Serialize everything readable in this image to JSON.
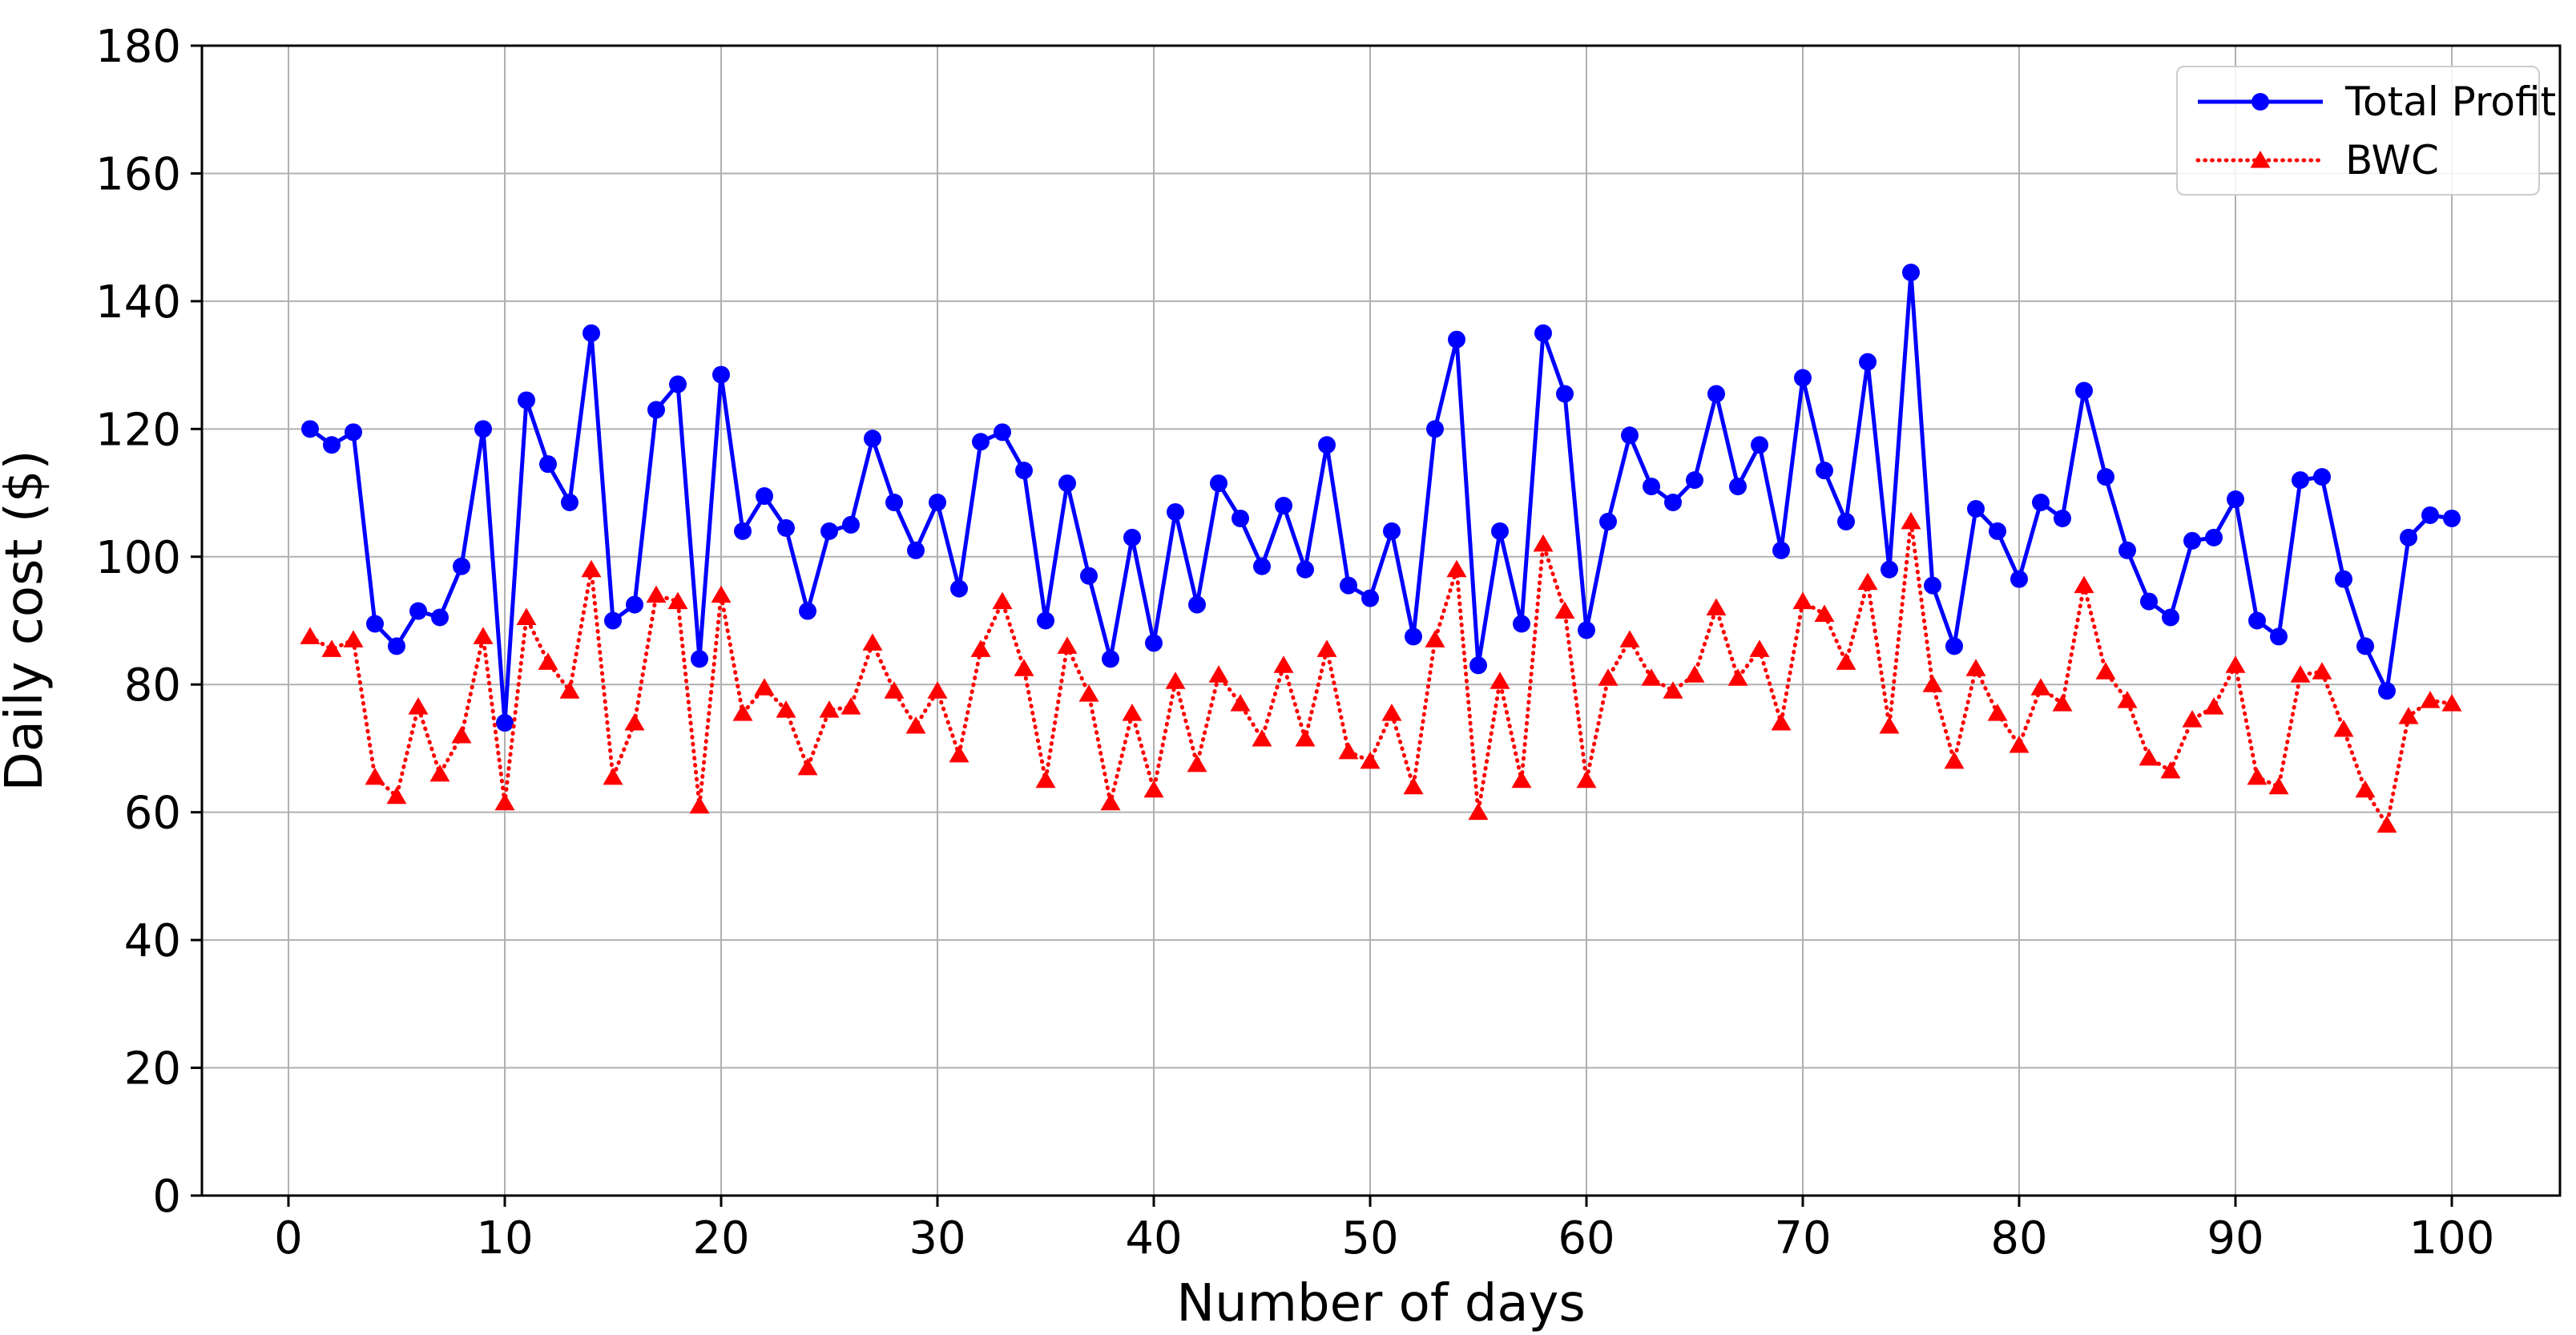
{
  "chart_data": {
    "type": "line",
    "title": "",
    "xlabel": "Number of days",
    "ylabel": "Daily cost ($)",
    "xlim": [
      -4,
      105
    ],
    "ylim": [
      0,
      180
    ],
    "xticks": [
      0,
      10,
      20,
      30,
      40,
      50,
      60,
      70,
      80,
      90,
      100
    ],
    "yticks": [
      0,
      20,
      40,
      60,
      80,
      100,
      120,
      140,
      160,
      180
    ],
    "grid": true,
    "grid_color": "#b0b0b0",
    "background": "#ffffff",
    "legend": {
      "position": "upper right"
    },
    "x": [
      1,
      2,
      3,
      4,
      5,
      6,
      7,
      8,
      9,
      10,
      11,
      12,
      13,
      14,
      15,
      16,
      17,
      18,
      19,
      20,
      21,
      22,
      23,
      24,
      25,
      26,
      27,
      28,
      29,
      30,
      31,
      32,
      33,
      34,
      35,
      36,
      37,
      38,
      39,
      40,
      41,
      42,
      43,
      44,
      45,
      46,
      47,
      48,
      49,
      50,
      51,
      52,
      53,
      54,
      55,
      56,
      57,
      58,
      59,
      60,
      61,
      62,
      63,
      64,
      65,
      66,
      67,
      68,
      69,
      70,
      71,
      72,
      73,
      74,
      75,
      76,
      77,
      78,
      79,
      80,
      81,
      82,
      83,
      84,
      85,
      86,
      87,
      88,
      89,
      90,
      91,
      92,
      93,
      94,
      95,
      96,
      97,
      98,
      99,
      100
    ],
    "series": [
      {
        "name": "Total Profit",
        "color": "#0000ff",
        "line_style": "solid",
        "marker": "circle",
        "values": [
          120,
          117.5,
          119.5,
          89.5,
          86,
          91.5,
          90.5,
          98.5,
          120,
          74,
          124.5,
          114.5,
          108.5,
          135,
          90,
          92.5,
          123,
          127,
          84,
          128.5,
          104,
          109.5,
          104.5,
          91.5,
          104,
          105,
          118.5,
          108.5,
          101,
          108.5,
          95,
          118,
          119.5,
          113.5,
          90,
          111.5,
          97,
          84,
          103,
          86.5,
          107,
          92.5,
          111.5,
          106,
          98.5,
          108,
          98,
          117.5,
          95.5,
          93.5,
          104,
          87.5,
          120,
          134,
          83,
          104,
          89.5,
          135,
          125.5,
          88.5,
          105.5,
          119,
          111,
          108.5,
          112,
          125.5,
          111,
          117.5,
          101,
          128,
          113.5,
          105.5,
          130.5,
          98,
          144.5,
          95.5,
          86,
          107.5,
          104,
          96.5,
          108.5,
          106,
          126,
          112.5,
          101,
          93,
          90.5,
          102.5,
          103,
          109,
          90,
          87.5,
          112,
          112.5,
          96.5,
          86,
          79,
          103,
          106.5,
          106
        ]
      },
      {
        "name": "BWC",
        "color": "#ff0000",
        "line_style": "dotted",
        "marker": "triangle-up",
        "values": [
          87.5,
          85.5,
          87,
          65.5,
          62.5,
          76.5,
          66,
          72,
          87.5,
          61.5,
          90.5,
          83.5,
          79,
          98,
          65.5,
          74,
          94,
          93,
          61,
          94,
          75.5,
          79.5,
          76,
          67,
          76,
          76.5,
          86.5,
          79,
          73.5,
          79,
          69,
          85.5,
          93,
          82.5,
          65,
          86,
          78.5,
          61.5,
          75.5,
          63.5,
          80.5,
          67.5,
          81.5,
          77,
          71.5,
          83,
          71.5,
          85.5,
          69.5,
          68,
          75.5,
          64,
          87,
          98,
          60,
          80.5,
          65,
          102,
          91.5,
          65,
          81,
          87,
          81,
          79,
          81.5,
          92,
          81,
          85.5,
          74,
          93,
          91,
          83.5,
          96,
          73.5,
          105.5,
          80,
          68,
          82.5,
          75.5,
          70.5,
          79.5,
          77,
          95.5,
          82,
          77.5,
          68.5,
          66.5,
          74.5,
          76.5,
          83,
          65.5,
          64,
          81.5,
          82,
          73,
          63.5,
          58,
          75,
          77.5,
          77
        ]
      }
    ]
  }
}
